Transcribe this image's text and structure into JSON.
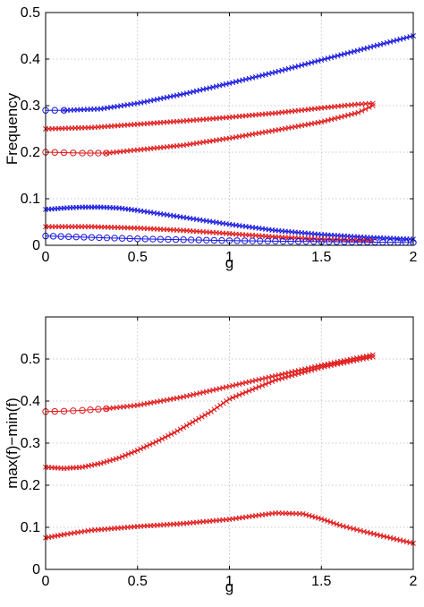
{
  "colors": {
    "blue": "#1a1adf",
    "red": "#e01a1a",
    "grid": "#b8b8b8"
  },
  "chart_data": [
    {
      "type": "scatter",
      "xlabel": "g",
      "ylabel": "Frequency",
      "xlim": [
        0,
        2
      ],
      "ylim": [
        0,
        0.5
      ],
      "xticks": [
        0,
        0.5,
        1,
        1.5,
        2
      ],
      "yticks": [
        0,
        0.1,
        0.2,
        0.3,
        0.4,
        0.5
      ],
      "grid": true,
      "series": [
        {
          "color": "blue",
          "segments": [
            {
              "marker": "o",
              "x": [
                0,
                0.05,
                0.1
              ],
              "y": [
                0.29,
                0.29,
                0.29
              ]
            },
            {
              "marker": "x",
              "x": [
                0.1,
                0.3,
                0.5,
                0.75,
                1.0,
                1.25,
                1.5,
                1.75,
                2.0
              ],
              "y": [
                0.29,
                0.293,
                0.305,
                0.325,
                0.348,
                0.372,
                0.398,
                0.424,
                0.45
              ]
            }
          ]
        },
        {
          "color": "red",
          "segments": [
            {
              "marker": "x",
              "x": [
                0,
                0.25,
                0.5,
                0.75,
                1.0,
                1.25,
                1.5,
                1.7,
                1.78
              ],
              "y": [
                0.25,
                0.253,
                0.26,
                0.267,
                0.275,
                0.284,
                0.295,
                0.303,
                0.305
              ]
            }
          ]
        },
        {
          "color": "red",
          "segments": [
            {
              "marker": "o",
              "x": [
                0,
                0.1,
                0.2,
                0.33
              ],
              "y": [
                0.2,
                0.199,
                0.198,
                0.198
              ]
            },
            {
              "marker": "x",
              "x": [
                0.33,
                0.5,
                0.75,
                1.0,
                1.25,
                1.5,
                1.7,
                1.78
              ],
              "y": [
                0.198,
                0.205,
                0.215,
                0.23,
                0.247,
                0.265,
                0.285,
                0.3
              ]
            }
          ]
        },
        {
          "color": "blue",
          "segments": [
            {
              "marker": "x",
              "x": [
                0,
                0.1,
                0.2,
                0.3,
                0.4,
                0.5,
                0.75,
                1.0,
                1.25,
                1.5,
                1.75,
                2.0
              ],
              "y": [
                0.077,
                0.08,
                0.082,
                0.082,
                0.08,
                0.075,
                0.06,
                0.045,
                0.032,
                0.023,
                0.017,
                0.013
              ]
            }
          ]
        },
        {
          "color": "red",
          "segments": [
            {
              "marker": "x",
              "x": [
                0,
                0.25,
                0.5,
                0.75,
                1.0,
                1.25,
                1.5,
                1.78
              ],
              "y": [
                0.04,
                0.04,
                0.037,
                0.032,
                0.025,
                0.018,
                0.013,
                0.01
              ]
            }
          ]
        },
        {
          "color": "blue",
          "segments": [
            {
              "marker": "o",
              "x": [
                0,
                0.25,
                0.5,
                0.75,
                1.0,
                1.25,
                1.5,
                1.75,
                2.0
              ],
              "y": [
                0.02,
                0.017,
                0.014,
                0.012,
                0.01,
                0.009,
                0.008,
                0.007,
                0.006
              ]
            }
          ]
        }
      ]
    },
    {
      "type": "scatter",
      "xlabel": "g",
      "ylabel": "max(f)−min(f)",
      "xlim": [
        0,
        2
      ],
      "ylim": [
        0,
        0.6
      ],
      "xticks": [
        0,
        0.5,
        1,
        1.5,
        2
      ],
      "yticks": [
        0,
        0.1,
        0.2,
        0.3,
        0.4,
        0.5
      ],
      "grid": true,
      "series": [
        {
          "color": "red",
          "segments": [
            {
              "marker": "o",
              "x": [
                0,
                0.1,
                0.2,
                0.33
              ],
              "y": [
                0.375,
                0.376,
                0.378,
                0.382
              ]
            },
            {
              "marker": "x",
              "x": [
                0.33,
                0.5,
                0.75,
                1.0,
                1.25,
                1.5,
                1.78
              ],
              "y": [
                0.382,
                0.39,
                0.41,
                0.435,
                0.46,
                0.485,
                0.51
              ]
            }
          ]
        },
        {
          "color": "red",
          "segments": [
            {
              "marker": "x",
              "x": [
                0,
                0.1,
                0.2,
                0.3,
                0.4,
                0.5,
                0.6,
                0.7,
                0.8,
                0.9,
                1.0,
                1.25,
                1.5,
                1.78
              ],
              "y": [
                0.243,
                0.24,
                0.243,
                0.252,
                0.265,
                0.283,
                0.303,
                0.325,
                0.35,
                0.375,
                0.405,
                0.45,
                0.48,
                0.505
              ]
            }
          ]
        },
        {
          "color": "red",
          "segments": [
            {
              "marker": "x",
              "x": [
                0,
                0.1,
                0.25,
                0.5,
                0.75,
                1.0,
                1.25,
                1.4,
                1.5,
                1.6,
                1.75,
                2.0
              ],
              "y": [
                0.075,
                0.083,
                0.093,
                0.102,
                0.109,
                0.119,
                0.134,
                0.132,
                0.12,
                0.105,
                0.088,
                0.062
              ]
            }
          ]
        }
      ]
    }
  ]
}
